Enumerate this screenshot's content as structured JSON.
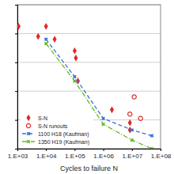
{
  "chart_data": {
    "type": "scatter",
    "x_label": "Cycles to failure N",
    "log": "x",
    "grid": true,
    "legend": "lower left",
    "tick_labels": "x",
    "xlim": [
      1000,
      100000000
    ],
    "xticks": [
      {
        "value": 1000,
        "label": "1.E+03"
      },
      {
        "value": 10000,
        "label": "1.E+04"
      },
      {
        "value": 100000,
        "label": "1.E+05"
      },
      {
        "value": 1000000,
        "label": "1.E+06"
      },
      {
        "value": 10000000,
        "label": "1.E+07"
      },
      {
        "value": 100000000,
        "label": "1.E+08"
      }
    ],
    "ylim": [
      0,
      100
    ],
    "yticks": [
      0,
      20,
      40,
      60,
      80,
      100
    ],
    "series": [
      {
        "name": "S-N",
        "type": "scatter",
        "color": "#e02828",
        "marker": "diamond",
        "x": [
          1100,
          5300,
          10000,
          20000,
          100000,
          110000,
          130000,
          2000000,
          8500000,
          8500000
        ],
        "values": [
          85,
          78,
          85,
          76,
          68,
          63,
          47,
          27,
          18,
          13
        ]
      },
      {
        "name": "S-N runouts",
        "type": "scatter",
        "color": "#e02828",
        "marker": "circle",
        "x": [
          8500000,
          12000000,
          20000000
        ],
        "values": [
          24,
          36,
          21
        ]
      },
      {
        "name": "1100 H18 (Kaufman)",
        "type": "line",
        "color": "#3a6fd8",
        "marker": "x",
        "line_style": "dashed",
        "x": [
          10000,
          100000,
          1000000,
          10000000,
          50000000
        ],
        "values": [
          76,
          50,
          21,
          13,
          9
        ]
      },
      {
        "name": "1350 H19 (Kaufman)",
        "type": "line",
        "color": "#66b822",
        "marker": "x",
        "line_style": "dashdot",
        "x": [
          10000,
          100000,
          1000000,
          10000000,
          50000000
        ],
        "values": [
          73,
          47,
          17,
          6,
          0
        ]
      }
    ]
  }
}
